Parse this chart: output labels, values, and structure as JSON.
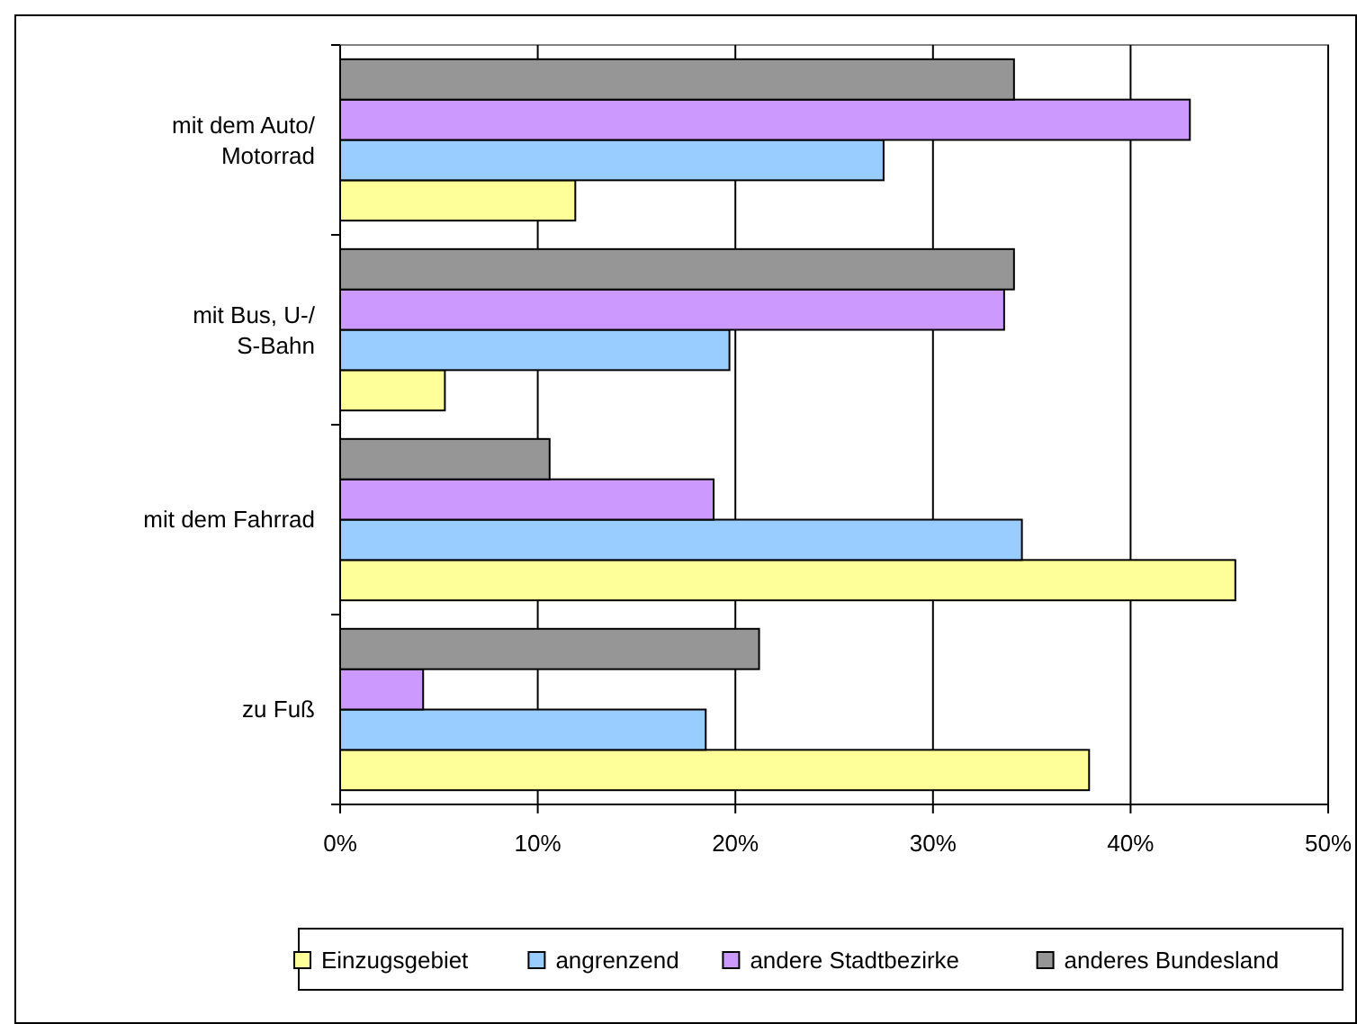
{
  "chart_data": {
    "type": "bar",
    "orientation": "horizontal",
    "categories": [
      "mit dem Auto/ Motorrad",
      "mit Bus, U-/ S-Bahn",
      "mit dem Fahrrad",
      "zu Fuß"
    ],
    "series": [
      {
        "name": "Einzugsgebiet",
        "color": "#ffff99",
        "values": [
          11.9,
          5.3,
          45.3,
          37.9
        ]
      },
      {
        "name": "angrenzend",
        "color": "#99ccff",
        "values": [
          27.5,
          19.7,
          34.5,
          18.5
        ]
      },
      {
        "name": "andere Stadtbezirke",
        "color": "#cc99ff",
        "values": [
          43.0,
          33.6,
          18.9,
          4.2
        ]
      },
      {
        "name": "anderes Bundesland",
        "color": "#969696",
        "values": [
          34.1,
          34.1,
          10.6,
          21.2
        ]
      }
    ],
    "xlim": [
      0,
      50
    ],
    "xticks": [
      {
        "value": 0,
        "label": "0%"
      },
      {
        "value": 10,
        "label": "10%"
      },
      {
        "value": 20,
        "label": "20%"
      },
      {
        "value": 30,
        "label": "30%"
      },
      {
        "value": 40,
        "label": "40%"
      },
      {
        "value": 50,
        "label": "50%"
      }
    ],
    "grid": "x",
    "legend": "bottom"
  }
}
